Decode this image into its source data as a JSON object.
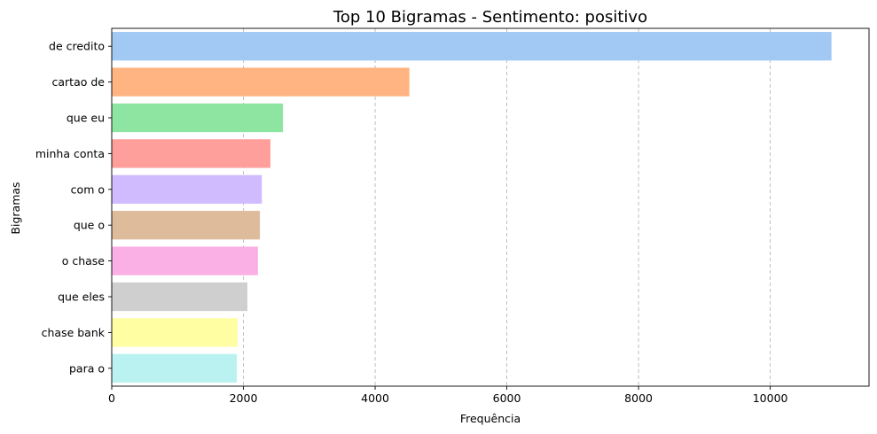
{
  "chart_data": {
    "type": "bar",
    "orientation": "horizontal",
    "title": "Top 10 Bigramas - Sentimento: positivo",
    "xlabel": "Frequência",
    "ylabel": "Bigramas",
    "categories": [
      "de credito",
      "cartao de",
      "que eu",
      "minha conta",
      "com o",
      "que o",
      "o chase",
      "que eles",
      "chase bank",
      "para o"
    ],
    "values": [
      10930,
      4520,
      2600,
      2410,
      2280,
      2250,
      2220,
      2060,
      1910,
      1900
    ],
    "colors": [
      "#a1c9f4",
      "#ffb482",
      "#8de5a1",
      "#ff9f9b",
      "#d0bbff",
      "#debb9b",
      "#fab0e4",
      "#cfcfcf",
      "#fffea3",
      "#b9f2f0"
    ],
    "xlim": [
      0,
      11500
    ],
    "xticks": [
      0,
      2000,
      4000,
      6000,
      8000,
      10000
    ],
    "grid": "x-dashed",
    "legend": "none"
  }
}
